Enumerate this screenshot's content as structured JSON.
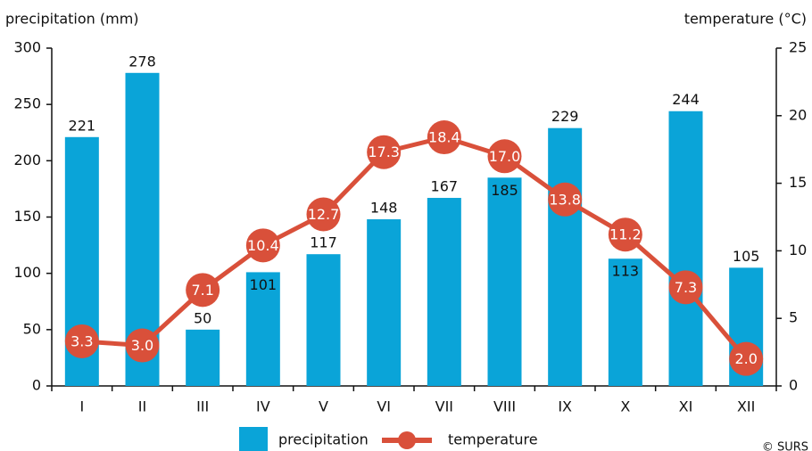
{
  "chart_data": {
    "type": "bar_line",
    "y_label": "precipitation (mm)",
    "y2_label": "temperature (°C)",
    "categories": [
      "I",
      "II",
      "III",
      "IV",
      "V",
      "VI",
      "VII",
      "VIII",
      "IX",
      "X",
      "XI",
      "XII"
    ],
    "series": [
      {
        "name": "precipitation",
        "type": "bar",
        "color": "#0aa4d8",
        "values": [
          221,
          278,
          50,
          101,
          117,
          148,
          167,
          185,
          229,
          113,
          244,
          105
        ]
      },
      {
        "name": "temperature",
        "type": "line",
        "axis": "y2",
        "color": "#d9503a",
        "values": [
          3.3,
          3.0,
          7.1,
          10.4,
          12.7,
          17.3,
          18.4,
          17.0,
          13.8,
          11.2,
          7.3,
          2.0
        ],
        "value_labels": [
          "3.3",
          "3.0",
          "7.1",
          "10.4",
          "12.7",
          "17.3",
          "18.4",
          "17.0",
          "13.8",
          "11.2",
          "7.3",
          "2.0"
        ]
      }
    ],
    "ylim": [
      0,
      300
    ],
    "yticks": [
      0,
      50,
      100,
      150,
      200,
      250,
      300
    ],
    "y2lim": [
      0,
      25
    ],
    "y2ticks": [
      0,
      5,
      10,
      15,
      20,
      25
    ],
    "legend": "bottom",
    "source": "© SURS"
  }
}
